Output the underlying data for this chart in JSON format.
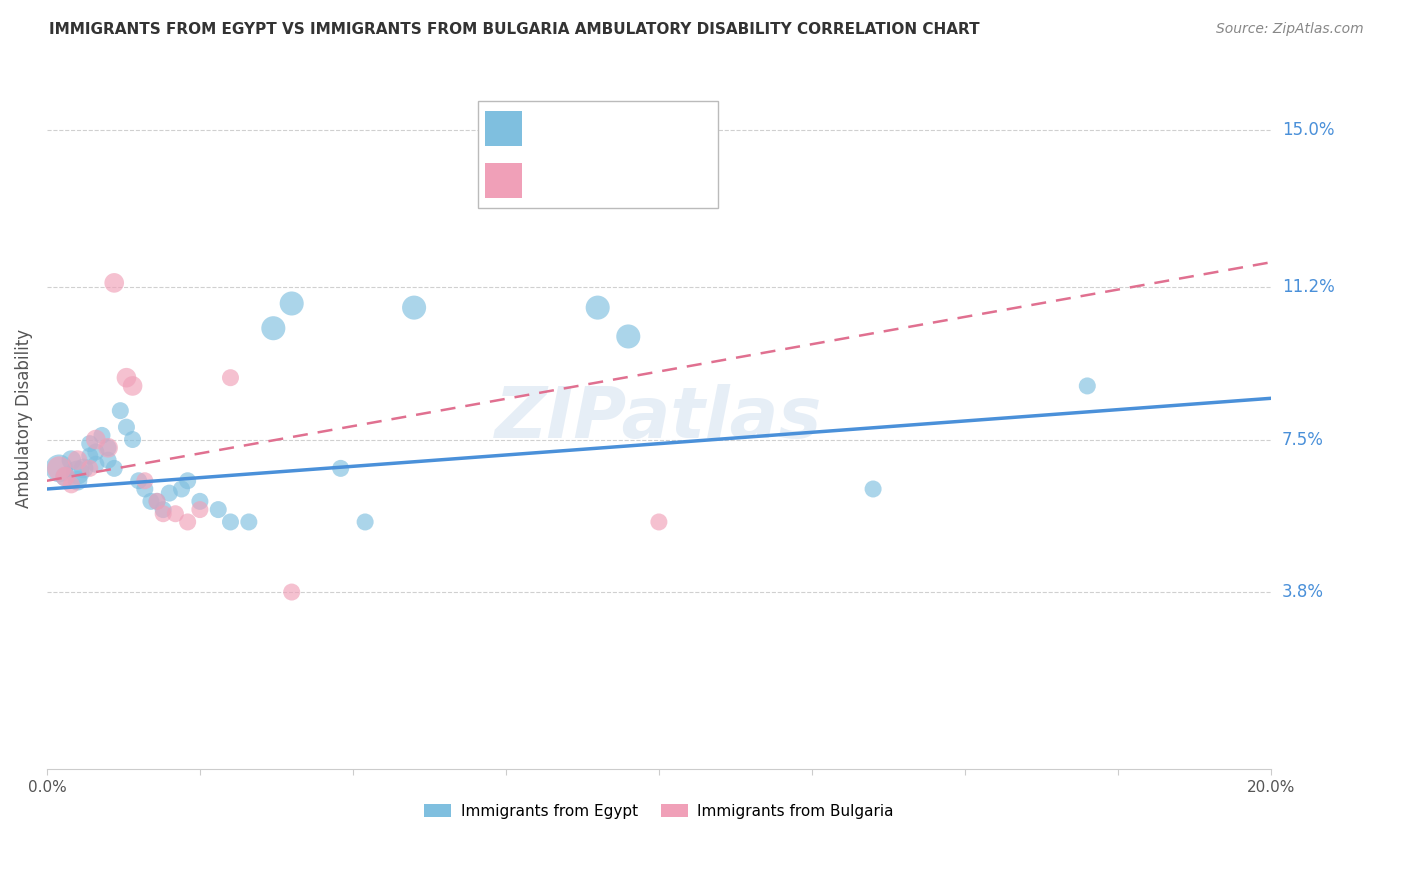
{
  "title": "IMMIGRANTS FROM EGYPT VS IMMIGRANTS FROM BULGARIA AMBULATORY DISABILITY CORRELATION CHART",
  "source": "Source: ZipAtlas.com",
  "ylabel": "Ambulatory Disability",
  "ytick_labels": [
    "15.0%",
    "11.2%",
    "7.5%",
    "3.8%"
  ],
  "ytick_values": [
    0.15,
    0.112,
    0.075,
    0.038
  ],
  "xlim": [
    0.0,
    0.2
  ],
  "ylim": [
    -0.005,
    0.165
  ],
  "color_egypt": "#7fbfdf",
  "color_bulgaria": "#f0a0b8",
  "color_egypt_line": "#4a90d9",
  "color_bulgaria_line": "#e07090",
  "watermark": "ZIPatlas",
  "egypt_x": [
    0.002,
    0.003,
    0.004,
    0.005,
    0.005,
    0.006,
    0.007,
    0.007,
    0.008,
    0.008,
    0.009,
    0.01,
    0.01,
    0.011,
    0.012,
    0.013,
    0.014,
    0.015,
    0.016,
    0.017,
    0.018,
    0.019,
    0.02,
    0.022,
    0.023,
    0.025,
    0.028,
    0.03,
    0.033,
    0.037,
    0.04,
    0.048,
    0.052,
    0.06,
    0.09,
    0.095,
    0.135,
    0.17
  ],
  "egypt_y": [
    0.068,
    0.066,
    0.07,
    0.067,
    0.065,
    0.068,
    0.071,
    0.074,
    0.072,
    0.069,
    0.076,
    0.073,
    0.07,
    0.068,
    0.082,
    0.078,
    0.075,
    0.065,
    0.063,
    0.06,
    0.06,
    0.058,
    0.062,
    0.063,
    0.065,
    0.06,
    0.058,
    0.055,
    0.055,
    0.102,
    0.108,
    0.068,
    0.055,
    0.107,
    0.107,
    0.1,
    0.063,
    0.088
  ],
  "egypt_sizes": [
    400,
    200,
    200,
    300,
    200,
    200,
    150,
    150,
    150,
    150,
    150,
    150,
    150,
    150,
    150,
    150,
    150,
    150,
    150,
    150,
    150,
    150,
    150,
    150,
    150,
    150,
    150,
    150,
    150,
    300,
    300,
    150,
    150,
    300,
    300,
    300,
    150,
    150
  ],
  "bulgaria_x": [
    0.002,
    0.003,
    0.004,
    0.005,
    0.007,
    0.008,
    0.01,
    0.011,
    0.013,
    0.014,
    0.016,
    0.018,
    0.019,
    0.021,
    0.023,
    0.025,
    0.03,
    0.04,
    0.1
  ],
  "bulgaria_y": [
    0.068,
    0.066,
    0.064,
    0.07,
    0.068,
    0.075,
    0.073,
    0.113,
    0.09,
    0.088,
    0.065,
    0.06,
    0.057,
    0.057,
    0.055,
    0.058,
    0.09,
    0.038,
    0.055
  ],
  "bulgaria_sizes": [
    300,
    200,
    150,
    200,
    150,
    200,
    200,
    200,
    200,
    200,
    150,
    150,
    150,
    150,
    150,
    150,
    150,
    150,
    150
  ],
  "egypt_line_x": [
    0.0,
    0.2
  ],
  "egypt_line_y": [
    0.063,
    0.085
  ],
  "bulgaria_line_x": [
    0.0,
    0.2
  ],
  "bulgaria_line_y": [
    0.065,
    0.118
  ]
}
